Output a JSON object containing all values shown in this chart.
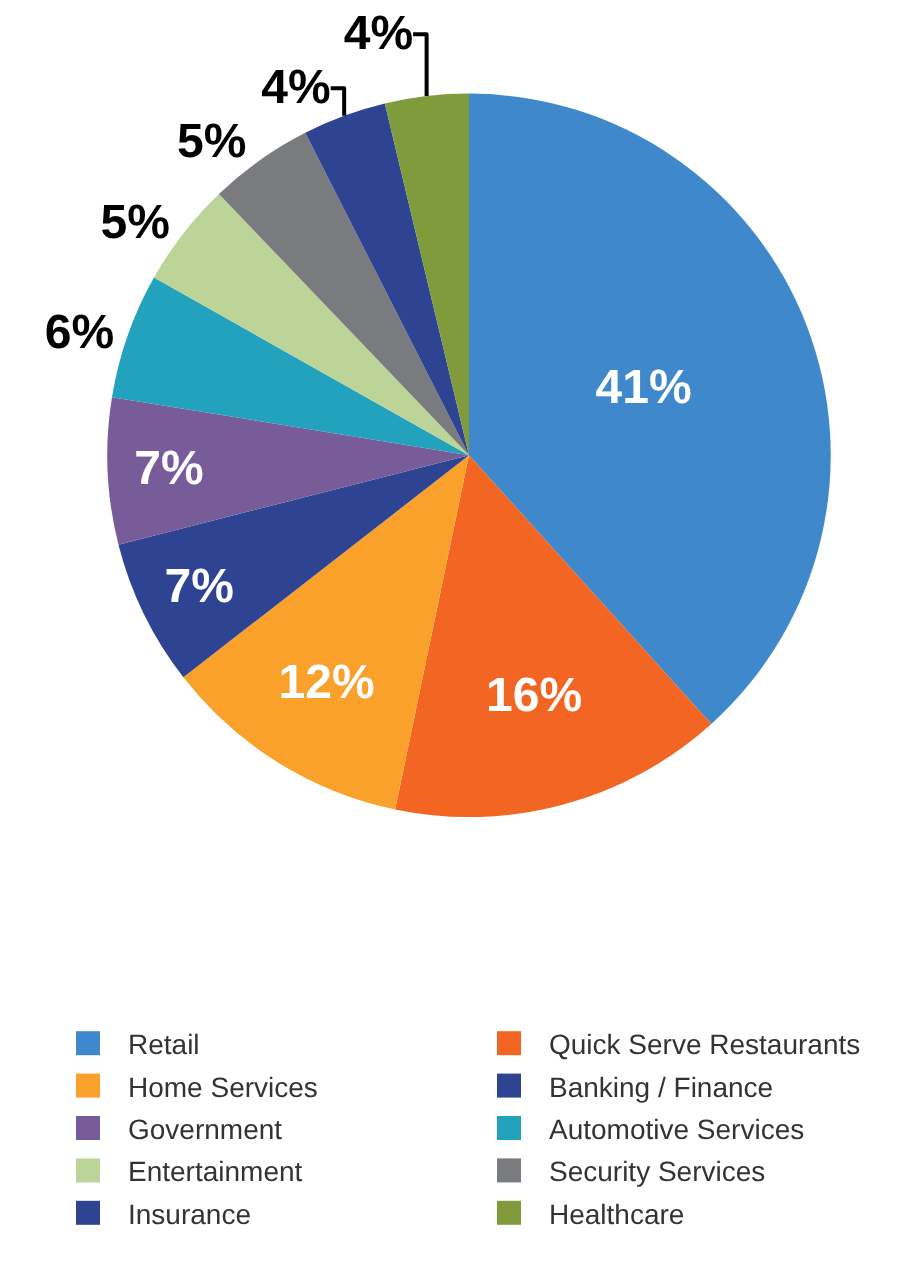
{
  "chart_data": {
    "type": "pie",
    "categories": [
      "Retail",
      "Quick Serve Restaurants",
      "Home Services",
      "Banking / Finance",
      "Government",
      "Automotive Services",
      "Entertainment",
      "Security Services",
      "Insurance",
      "Healthcare"
    ],
    "values": [
      41,
      16,
      12,
      7,
      7,
      6,
      5,
      5,
      4,
      4
    ],
    "value_labels": [
      "41%",
      "16%",
      "12%",
      "7%",
      "7%",
      "6%",
      "5%",
      "5%",
      "4%",
      "4%"
    ],
    "colors": [
      "#3f88cc",
      "#f26522",
      "#f9a12b",
      "#2e4492",
      "#785c9a",
      "#22a2bc",
      "#bcd498",
      "#7a7b7f",
      "#2e4492",
      "#7f9b3c"
    ],
    "legend": "bottom"
  }
}
